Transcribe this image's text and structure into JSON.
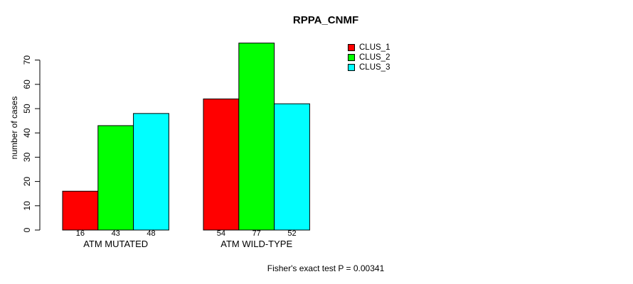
{
  "chart_data": {
    "type": "bar",
    "title": "RPPA_CNMF",
    "ylabel": "number of cases",
    "xlabel": "",
    "categories": [
      "ATM MUTATED",
      "ATM WILD-TYPE"
    ],
    "series": [
      {
        "name": "CLUS_1",
        "color": "#ff0000",
        "values": [
          16,
          54
        ]
      },
      {
        "name": "CLUS_2",
        "color": "#00ff00",
        "values": [
          43,
          77
        ]
      },
      {
        "name": "CLUS_3",
        "color": "#00ffff",
        "values": [
          48,
          52
        ]
      }
    ],
    "yticks": [
      0,
      10,
      20,
      30,
      40,
      50,
      60,
      70
    ],
    "ylim": [
      0,
      78
    ],
    "grid": false,
    "bar_value_labels_shown": true,
    "legend_position": "top-right",
    "legend_entries": [
      "CLUS_1",
      "CLUS_2",
      "CLUS_3"
    ],
    "annotation": "Fisher's exact test P = 0.00341"
  }
}
